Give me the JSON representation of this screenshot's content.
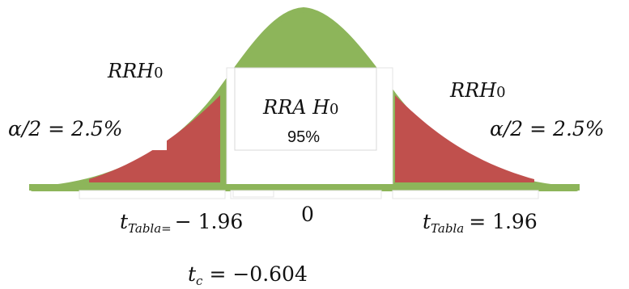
{
  "colors": {
    "curve_fill": "#8db55a",
    "curve_stroke": "#8db55a",
    "rejection_fill": "#c0504d",
    "acceptance_fill": "#ffffff",
    "text": "#111111"
  },
  "left_region": {
    "label_main": "RRH",
    "label_sub": "0",
    "alpha_text": "α/2 = 2.5%"
  },
  "center_region": {
    "label_main": "RRA H",
    "label_sub": "0",
    "percent": "95%"
  },
  "right_region": {
    "label_main": "RRH",
    "label_sub": "0",
    "alpha_text": "α/2 = 2.5%"
  },
  "axis": {
    "left_critical": {
      "symbol": "t",
      "subscript": "Tabla=",
      "value": "− 1.96"
    },
    "center_value": "0",
    "right_critical": {
      "symbol": "t",
      "subscript": "Tabla",
      "value": "= 1.96"
    }
  },
  "statistic": {
    "symbol": "t",
    "subscript": "c",
    "value": "= −0.604"
  }
}
